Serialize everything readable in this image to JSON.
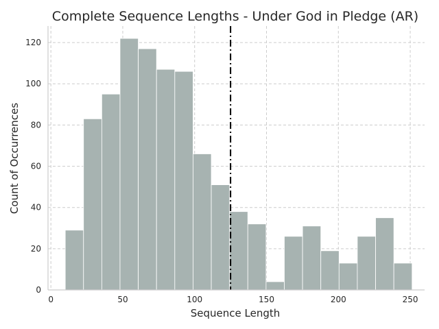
{
  "chart_data": {
    "type": "bar",
    "title": "Complete Sequence Lengths - Under God in Pledge (AR)",
    "xlabel": "Sequence Length",
    "ylabel": "Count of Occurrences",
    "xlim": [
      -2,
      260
    ],
    "ylim": [
      0,
      128
    ],
    "x_ticks": [
      0,
      50,
      100,
      150,
      200,
      250
    ],
    "y_ticks": [
      0,
      20,
      40,
      60,
      80,
      100,
      120
    ],
    "grid": true,
    "bin_edges": [
      10,
      22.7,
      35.4,
      48.1,
      60.8,
      73.5,
      86.2,
      98.9,
      111.6,
      124.3,
      137,
      149.7,
      162.4,
      175.1,
      187.8,
      200.5,
      213.2,
      225.9,
      238.6,
      251.3
    ],
    "counts": [
      29,
      83,
      95,
      122,
      117,
      107,
      106,
      66,
      51,
      38,
      32,
      4,
      26,
      31,
      19,
      13,
      26,
      35,
      13
    ],
    "reference_line": {
      "x": 125,
      "style": "dash-dot"
    },
    "colors": {
      "bar_fill": "#a7b3b1",
      "bar_edge": "#ffffff",
      "grid": "#cccccc",
      "reference_line": "#000000",
      "axis": "#cccccc",
      "text": "#262626"
    }
  }
}
